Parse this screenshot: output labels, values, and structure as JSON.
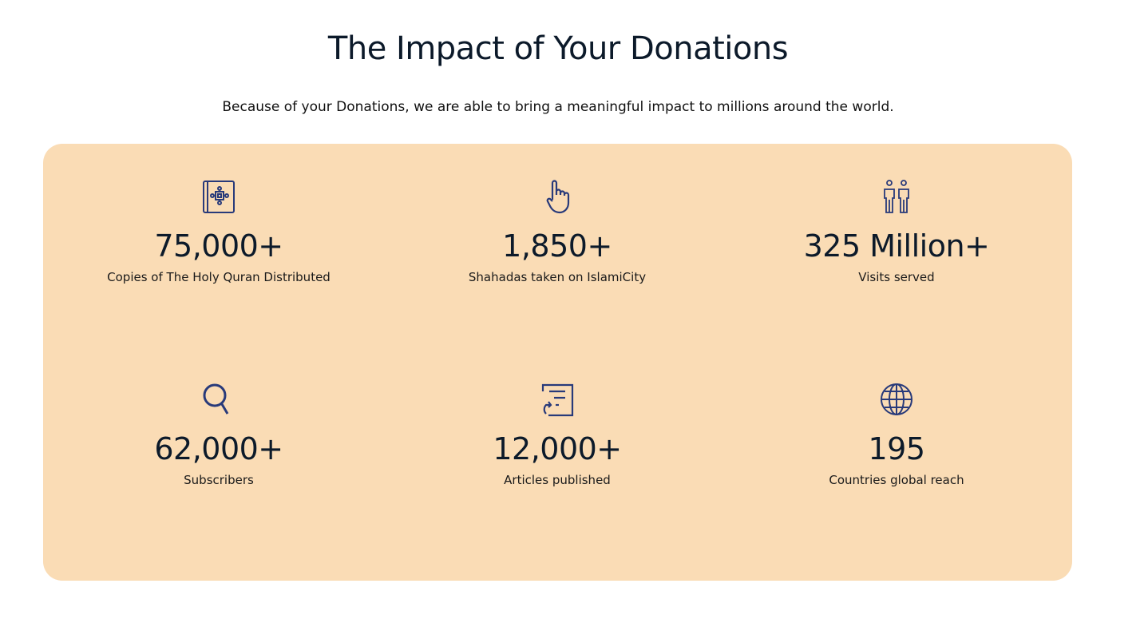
{
  "header": {
    "title": "The Impact of Your Donations",
    "subtitle": "Because of your Donations, we are able to bring a meaningful impact to millions around the world."
  },
  "colors": {
    "panel": "#fadcb5",
    "icon": "#283a7a"
  },
  "stats": [
    {
      "icon": "quran-book-icon",
      "value": "75,000+",
      "label": "Copies of The Holy Quran Distributed"
    },
    {
      "icon": "pointing-hand-icon",
      "value": "1,850+",
      "label": "Shahadas taken on IslamiCity"
    },
    {
      "icon": "people-icon",
      "value": "325 Million+",
      "label": "Visits served"
    },
    {
      "icon": "search-icon",
      "value": "62,000+",
      "label": "Subscribers"
    },
    {
      "icon": "article-icon",
      "value": "12,000+",
      "label": "Articles published"
    },
    {
      "icon": "globe-icon",
      "value": "195",
      "label": "Countries global reach"
    }
  ]
}
